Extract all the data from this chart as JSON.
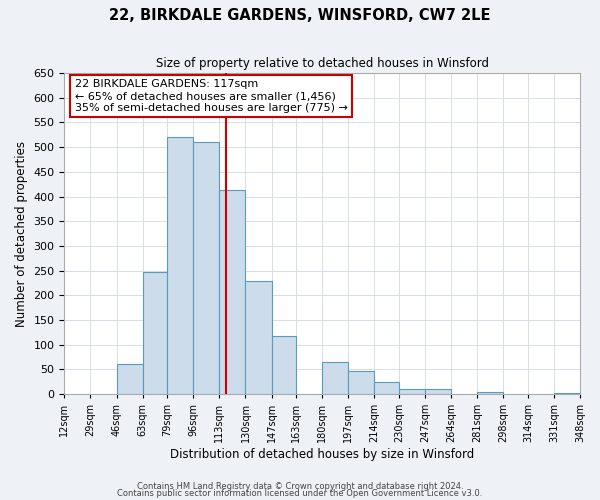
{
  "title": "22, BIRKDALE GARDENS, WINSFORD, CW7 2LE",
  "subtitle": "Size of property relative to detached houses in Winsford",
  "xlabel": "Distribution of detached houses by size in Winsford",
  "ylabel": "Number of detached properties",
  "bin_edges": [
    12,
    29,
    46,
    63,
    79,
    96,
    113,
    130,
    147,
    163,
    180,
    197,
    214,
    230,
    247,
    264,
    281,
    298,
    314,
    331,
    348
  ],
  "bin_labels": [
    "12sqm",
    "29sqm",
    "46sqm",
    "63sqm",
    "79sqm",
    "96sqm",
    "113sqm",
    "130sqm",
    "147sqm",
    "163sqm",
    "180sqm",
    "197sqm",
    "214sqm",
    "230sqm",
    "247sqm",
    "264sqm",
    "281sqm",
    "298sqm",
    "314sqm",
    "331sqm",
    "348sqm"
  ],
  "counts": [
    0,
    0,
    60,
    248,
    521,
    510,
    414,
    229,
    117,
    0,
    64,
    46,
    24,
    10,
    10,
    0,
    5,
    0,
    0,
    2
  ],
  "bar_color": "#ccdcea",
  "bar_edge_color": "#5a9aba",
  "property_size": 117,
  "vline_color": "#cc0000",
  "annotation_text": "22 BIRKDALE GARDENS: 117sqm\n← 65% of detached houses are smaller (1,456)\n35% of semi-detached houses are larger (775) →",
  "annotation_box_color": "#ffffff",
  "annotation_box_edge": "#cc0000",
  "ylim": [
    0,
    650
  ],
  "yticks": [
    0,
    50,
    100,
    150,
    200,
    250,
    300,
    350,
    400,
    450,
    500,
    550,
    600,
    650
  ],
  "footnote1": "Contains HM Land Registry data © Crown copyright and database right 2024.",
  "footnote2": "Contains public sector information licensed under the Open Government Licence v3.0.",
  "background_color": "#eef2f6",
  "plot_bg_color": "#ffffff",
  "grid_color": "#d0d8e0"
}
